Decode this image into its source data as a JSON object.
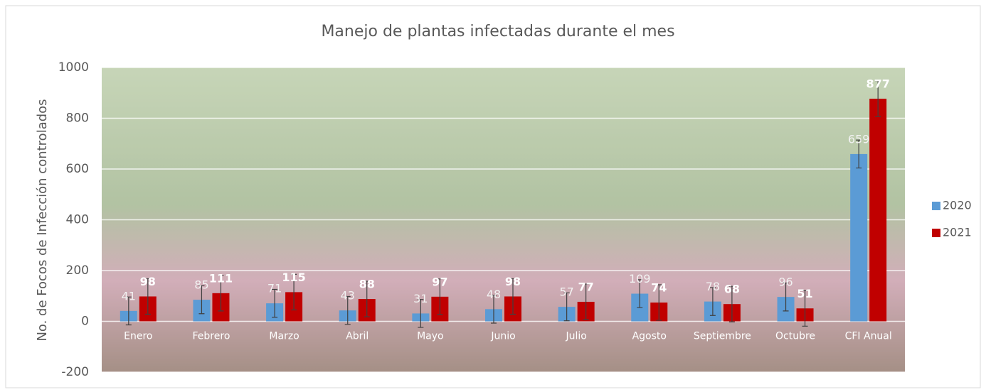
{
  "chart_data": {
    "type": "bar",
    "title": "Manejo de plantas infectadas durante el mes",
    "y_label": "No. de Focos de Infección controlados",
    "categories": [
      "Enero",
      "Febrero",
      "Marzo",
      "Abril",
      "Mayo",
      "Junio",
      "Julio",
      "Agosto",
      "Septiembre",
      "Octubre",
      "CFI Anual"
    ],
    "series": [
      {
        "name": "2020",
        "color": "#5b9bd5",
        "values": [
          41,
          85,
          71,
          43,
          31,
          48,
          57,
          109,
          78,
          96,
          659
        ],
        "errors": [
          55,
          55,
          55,
          55,
          55,
          55,
          55,
          55,
          55,
          55,
          55
        ]
      },
      {
        "name": "2021",
        "color": "#c00000",
        "values": [
          98,
          111,
          115,
          88,
          97,
          98,
          77,
          74,
          68,
          51,
          877
        ],
        "errors": [
          70,
          70,
          70,
          70,
          70,
          70,
          70,
          70,
          70,
          70,
          70
        ]
      }
    ],
    "ylim": [
      -200,
      1000
    ],
    "yticks": [
      -200,
      0,
      200,
      400,
      600,
      800,
      1000
    ],
    "grid": true,
    "legend": "right"
  }
}
